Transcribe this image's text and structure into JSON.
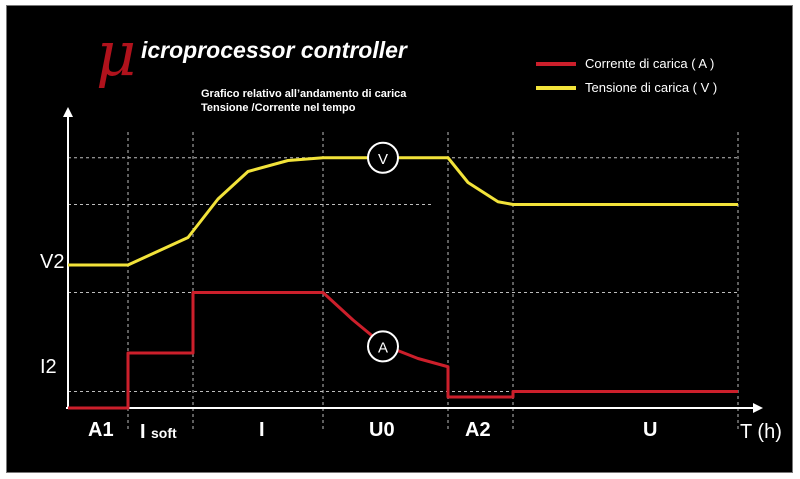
{
  "header": {
    "logo_mu": "μ",
    "logo_text": "icroprocessor controller",
    "subtitle_line1": "Grafico relativo all’andamento di carica",
    "subtitle_line2": "Tensione /Corrente nel tempo"
  },
  "chart_data": {
    "type": "line",
    "xlabel": "T (h)",
    "y_tick_labels": [
      "V2",
      "I2"
    ],
    "phases": [
      "A1",
      "I",
      "soft",
      "I",
      "U0",
      "A2",
      "U"
    ],
    "legend_position": "top-right",
    "grid": "dashed",
    "series": [
      {
        "name": "Corrente di carica ( A )",
        "color": "#cc1f2b",
        "marker": "A",
        "points": [
          [
            0,
            0
          ],
          [
            12,
            0
          ],
          [
            12,
            1.0
          ],
          [
            25,
            1.0
          ],
          [
            25,
            2.1
          ],
          [
            51,
            2.1
          ],
          [
            57,
            1.6
          ],
          [
            63,
            1.15
          ],
          [
            70,
            0.9
          ],
          [
            76,
            0.75
          ],
          [
            76,
            0.2
          ],
          [
            89,
            0.2
          ],
          [
            89,
            0.3
          ],
          [
            134,
            0.3
          ]
        ]
      },
      {
        "name": "Tensione di carica ( V )",
        "color": "#f2e33a",
        "marker": "V",
        "points": [
          [
            0,
            2.6
          ],
          [
            12,
            2.6
          ],
          [
            24,
            3.1
          ],
          [
            30,
            3.8
          ],
          [
            36,
            4.3
          ],
          [
            44,
            4.5
          ],
          [
            51,
            4.55
          ],
          [
            76,
            4.55
          ],
          [
            80,
            4.1
          ],
          [
            86,
            3.75
          ],
          [
            89,
            3.7
          ],
          [
            134,
            3.7
          ]
        ]
      }
    ],
    "v_dividers": [
      12,
      25,
      51,
      76,
      89,
      134
    ],
    "h_gridlines": [
      0.3,
      2.1,
      3.7,
      4.55
    ]
  }
}
